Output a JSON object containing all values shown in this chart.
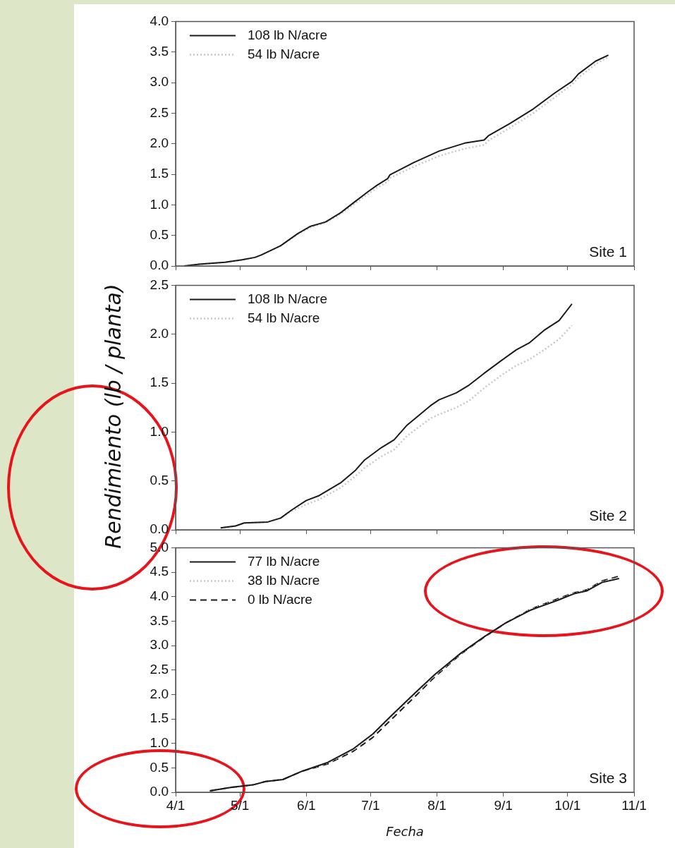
{
  "chart_data": [
    {
      "type": "line",
      "annotations": [
        "Site 1"
      ],
      "legend": "top left",
      "grid": false,
      "tick_labels": "y",
      "xlim": [
        "--04-01",
        "--11-01"
      ],
      "xticks": [
        {
          "value": "--04-01",
          "label": null
        },
        {
          "value": "--05-01",
          "label": null
        },
        {
          "value": "--06-01",
          "label": null
        },
        {
          "value": "--07-01",
          "label": null
        },
        {
          "value": "--08-01",
          "label": null
        },
        {
          "value": "--09-01",
          "label": null
        },
        {
          "value": "--10-01",
          "label": null
        },
        {
          "value": "--11-01",
          "label": null
        }
      ],
      "ylim": [
        0,
        4
      ],
      "yticks": [
        {
          "value": 0,
          "label": "0.0"
        },
        {
          "value": 0.5,
          "label": "0.5"
        },
        {
          "value": 1,
          "label": "1.0"
        },
        {
          "value": 1.5,
          "label": "1.5"
        },
        {
          "value": 2,
          "label": "2.0"
        },
        {
          "value": 2.5,
          "label": "2.5"
        },
        {
          "value": 3,
          "label": "3.0"
        },
        {
          "value": 3.5,
          "label": "3.5"
        },
        {
          "value": 4,
          "label": "4.0"
        }
      ],
      "x": [
        "--04-05",
        "--04-12",
        "--04-24",
        "--05-02",
        "--05-08",
        "--05-11",
        "--05-20",
        "--05-28",
        "--06-03",
        "--06-10",
        "--06-17",
        "--06-24",
        "--06-30",
        "--07-04",
        "--07-09",
        "--07-10",
        "--07-21",
        "--08-02",
        "--08-14",
        "--08-23",
        "--08-25",
        "--09-04",
        "--09-15",
        "--09-25",
        "--10-03",
        "--10-06",
        "--10-14",
        "--10-20"
      ],
      "series": [
        {
          "name": "108 lb N/acre",
          "color": "#1a1a1a",
          "line_style": "solid",
          "values": [
            0,
            0.03,
            0.06,
            0.1,
            0.14,
            0.18,
            0.33,
            0.53,
            0.65,
            0.72,
            0.87,
            1.06,
            1.22,
            1.32,
            1.43,
            1.49,
            1.69,
            1.88,
            2.01,
            2.06,
            2.13,
            2.33,
            2.57,
            2.83,
            3.02,
            3.14,
            3.35,
            3.45
          ]
        },
        {
          "name": "54 lb N/acre",
          "color": "#c8c8c8",
          "line_style": "dotted",
          "values": [
            0,
            0.03,
            0.06,
            0.1,
            0.14,
            0.18,
            0.33,
            0.52,
            0.63,
            0.71,
            0.85,
            1.03,
            1.18,
            1.28,
            1.38,
            1.44,
            1.62,
            1.8,
            1.92,
            1.98,
            2.05,
            2.26,
            2.5,
            2.76,
            2.97,
            3.08,
            3.3,
            3.42
          ]
        }
      ]
    },
    {
      "type": "line",
      "annotations": [
        "Site 2"
      ],
      "ylabel": "Rendimiento (lb / planta)",
      "legend": "top left",
      "grid": false,
      "tick_labels": "y",
      "xlim": [
        "--04-01",
        "--11-01"
      ],
      "xticks": [
        {
          "value": "--04-01",
          "label": null
        },
        {
          "value": "--05-01",
          "label": null
        },
        {
          "value": "--06-01",
          "label": null
        },
        {
          "value": "--07-01",
          "label": null
        },
        {
          "value": "--08-01",
          "label": null
        },
        {
          "value": "--09-01",
          "label": null
        },
        {
          "value": "--10-01",
          "label": null
        },
        {
          "value": "--11-01",
          "label": null
        }
      ],
      "ylim": [
        0,
        2.5
      ],
      "yticks": [
        {
          "value": 0,
          "label": "0.0"
        },
        {
          "value": 0.5,
          "label": "0.5"
        },
        {
          "value": 1,
          "label": "1.0"
        },
        {
          "value": 1.5,
          "label": "1.5"
        },
        {
          "value": 2,
          "label": "2.0"
        },
        {
          "value": 2.5,
          "label": "2.5"
        }
      ],
      "x": [
        "--04-22",
        "--04-29",
        "--05-03",
        "--05-14",
        "--05-20",
        "--05-25",
        "--06-01",
        "--06-07",
        "--06-17",
        "--06-24",
        "--06-28",
        "--07-06",
        "--07-12",
        "--07-18",
        "--07-29",
        "--08-02",
        "--08-10",
        "--08-16",
        "--08-23",
        "--08-31",
        "--09-07",
        "--09-13",
        "--09-20",
        "--09-27",
        "--10-03"
      ],
      "series": [
        {
          "name": "108 lb N/acre",
          "color": "#1a1a1a",
          "line_style": "solid",
          "values": [
            0.02,
            0.04,
            0.07,
            0.08,
            0.12,
            0.2,
            0.3,
            0.35,
            0.48,
            0.61,
            0.71,
            0.84,
            0.92,
            1.07,
            1.27,
            1.33,
            1.4,
            1.48,
            1.6,
            1.73,
            1.84,
            1.91,
            2.04,
            2.14,
            2.31
          ]
        },
        {
          "name": "54 lb N/acre",
          "color": "#c8c8c8",
          "line_style": "dotted",
          "values": [
            0.02,
            0.04,
            0.07,
            0.08,
            0.12,
            0.19,
            0.26,
            0.31,
            0.43,
            0.55,
            0.63,
            0.75,
            0.82,
            0.96,
            1.14,
            1.18,
            1.25,
            1.32,
            1.45,
            1.58,
            1.68,
            1.74,
            1.84,
            1.95,
            2.09
          ]
        }
      ]
    },
    {
      "type": "line",
      "annotations": [
        "Site 3"
      ],
      "xlabel": "Fecha",
      "legend": "top left",
      "grid": false,
      "xlim": [
        "--04-01",
        "--11-01"
      ],
      "xticks": [
        {
          "value": "--04-01",
          "label": "4/1"
        },
        {
          "value": "--05-01",
          "label": "5/1"
        },
        {
          "value": "--06-01",
          "label": "6/1"
        },
        {
          "value": "--07-01",
          "label": "7/1"
        },
        {
          "value": "--08-01",
          "label": "8/1"
        },
        {
          "value": "--09-01",
          "label": "9/1"
        },
        {
          "value": "--10-01",
          "label": "10/1"
        },
        {
          "value": "--11-01",
          "label": "11/1"
        }
      ],
      "ylim": [
        0,
        5
      ],
      "yticks": [
        {
          "value": 0,
          "label": "0.0"
        },
        {
          "value": 0.5,
          "label": "0.5"
        },
        {
          "value": 1,
          "label": "1.0"
        },
        {
          "value": 1.5,
          "label": "1.5"
        },
        {
          "value": 2,
          "label": "2.0"
        },
        {
          "value": 2.5,
          "label": "2.5"
        },
        {
          "value": 3,
          "label": "3.0"
        },
        {
          "value": 3.5,
          "label": "3.5"
        },
        {
          "value": 4,
          "label": "4.0"
        },
        {
          "value": 4.5,
          "label": "4.5"
        },
        {
          "value": 5,
          "label": "5.0"
        }
      ],
      "x": [
        "--04-17",
        "--04-27",
        "--05-07",
        "--05-13",
        "--05-21",
        "--05-30",
        "--06-11",
        "--06-23",
        "--07-02",
        "--07-11",
        "--07-22",
        "--07-31",
        "--08-12",
        "--08-23",
        "--09-02",
        "--09-14",
        "--09-26",
        "--10-04",
        "--10-10",
        "--10-17",
        "--10-25"
      ],
      "series": [
        {
          "name": "77 lb N/acre",
          "color": "#1a1a1a",
          "line_style": "solid",
          "values": [
            0.03,
            0.1,
            0.15,
            0.22,
            0.26,
            0.43,
            0.61,
            0.89,
            1.19,
            1.58,
            2.04,
            2.41,
            2.84,
            3.18,
            3.46,
            3.73,
            3.92,
            4.06,
            4.12,
            4.29,
            4.37
          ]
        },
        {
          "name": "38 lb N/acre",
          "color": "#c8c8c8",
          "line_style": "dotted",
          "values": [
            0.03,
            0.1,
            0.15,
            0.22,
            0.26,
            0.43,
            0.6,
            0.87,
            1.16,
            1.55,
            2.01,
            2.39,
            2.83,
            3.18,
            3.46,
            3.74,
            3.93,
            4.07,
            4.13,
            4.3,
            4.39
          ]
        },
        {
          "name": "0 lb N/acre",
          "color": "#1a1a1a",
          "line_style": "dashed",
          "values": [
            0.03,
            0.1,
            0.15,
            0.22,
            0.26,
            0.43,
            0.58,
            0.84,
            1.12,
            1.5,
            1.97,
            2.36,
            2.82,
            3.17,
            3.46,
            3.75,
            3.95,
            4.08,
            4.14,
            4.32,
            4.42
          ]
        }
      ]
    }
  ]
}
